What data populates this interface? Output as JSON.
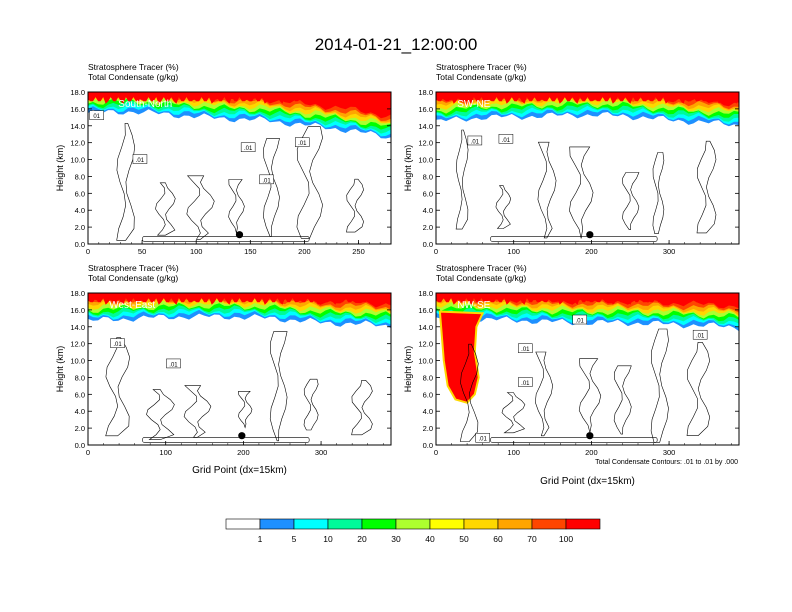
{
  "title": "2014-01-21_12:00:00",
  "colors": [
    "#ffffff",
    "#1e90ff",
    "#00ffff",
    "#00fa9a",
    "#00ff00",
    "#adff2f",
    "#ffff00",
    "#ffd700",
    "#ffa500",
    "#ff4500",
    "#ff0000"
  ],
  "colorbar": {
    "labels": [
      "1",
      "5",
      "10",
      "20",
      "30",
      "40",
      "50",
      "60",
      "70",
      "100"
    ]
  },
  "contour_note": "Total Condensate Contours: .01 to .01 by .000",
  "chart_data": [
    {
      "type": "heatmap",
      "subtitle_1": "Stratosphere Tracer   (%)",
      "subtitle_2": "Total Condensate   (g/kg)",
      "panel_label": "South-North",
      "ylabel": "Height (km)",
      "xlabel": "",
      "xlim": [
        0,
        280
      ],
      "ylim": [
        0,
        18
      ],
      "xticks": [
        0,
        50,
        100,
        150,
        200,
        250
      ],
      "yticks": [
        0,
        2,
        4,
        6,
        8,
        10,
        12,
        14,
        16,
        18
      ],
      "tracer_surface_km": [
        [
          0,
          16.4
        ],
        [
          40,
          16.6
        ],
        [
          80,
          16.2
        ],
        [
          120,
          15.8
        ],
        [
          160,
          15.6
        ],
        [
          200,
          15.0
        ],
        [
          240,
          14.4
        ],
        [
          280,
          13.5
        ]
      ],
      "contour_labels": [
        {
          "x": 8,
          "y": 15.2,
          "text": "01"
        },
        {
          "x": 48,
          "y": 10.0,
          "text": ".01"
        },
        {
          "x": 148,
          "y": 11.4,
          "text": ".01"
        },
        {
          "x": 165,
          "y": 7.6,
          "text": ".01"
        },
        {
          "x": 198,
          "y": 12.0,
          "text": ".01"
        }
      ],
      "marker": {
        "x": 140,
        "y": 1.1
      }
    },
    {
      "type": "heatmap",
      "subtitle_1": "Stratosphere Tracer   (%)",
      "subtitle_2": "Total Condensate   (g/kg)",
      "panel_label": "SW-NE",
      "ylabel": "Height (km)",
      "xlabel": "",
      "xlim": [
        0,
        390
      ],
      "ylim": [
        0,
        18
      ],
      "xticks": [
        0,
        100,
        200,
        300
      ],
      "yticks": [
        0,
        2,
        4,
        6,
        8,
        10,
        12,
        14,
        16,
        18
      ],
      "tracer_surface_km": [
        [
          0,
          15.4
        ],
        [
          60,
          15.9
        ],
        [
          120,
          16.0
        ],
        [
          180,
          16.2
        ],
        [
          240,
          16.1
        ],
        [
          300,
          15.6
        ],
        [
          360,
          15.2
        ],
        [
          390,
          15.0
        ]
      ],
      "contour_labels": [
        {
          "x": 50,
          "y": 12.2,
          "text": ".01"
        },
        {
          "x": 90,
          "y": 12.4,
          "text": ".01"
        }
      ],
      "marker": {
        "x": 198,
        "y": 1.1
      }
    },
    {
      "type": "heatmap",
      "subtitle_1": "Stratosphere Tracer   (%)",
      "subtitle_2": "Total Condensate   (g/kg)",
      "panel_label": "West-East",
      "ylabel": "Height (km)",
      "xlabel": "Grid Point (dx=15km)",
      "xlim": [
        0,
        390
      ],
      "ylim": [
        0,
        18
      ],
      "xticks": [
        0,
        100,
        200,
        300
      ],
      "yticks": [
        0,
        2,
        4,
        6,
        8,
        10,
        12,
        14,
        16,
        18
      ],
      "tracer_surface_km": [
        [
          0,
          15.6
        ],
        [
          60,
          15.9
        ],
        [
          120,
          16.1
        ],
        [
          180,
          16.1
        ],
        [
          240,
          15.9
        ],
        [
          300,
          15.4
        ],
        [
          360,
          15.2
        ],
        [
          390,
          15.0
        ]
      ],
      "contour_labels": [
        {
          "x": 38,
          "y": 12.0,
          "text": ".01"
        },
        {
          "x": 110,
          "y": 9.6,
          "text": ".01"
        }
      ],
      "marker": {
        "x": 198,
        "y": 1.1
      }
    },
    {
      "type": "heatmap",
      "subtitle_1": "Stratosphere Tracer   (%)",
      "subtitle_2": "Total Condensate   (g/kg)",
      "panel_label": "NW-SE",
      "ylabel": "Height (km)",
      "xlabel": "Grid Point (dx=15km)",
      "xlim": [
        0,
        390
      ],
      "ylim": [
        0,
        18
      ],
      "xticks": [
        0,
        100,
        200,
        300
      ],
      "yticks": [
        0,
        2,
        4,
        6,
        8,
        10,
        12,
        14,
        16,
        18
      ],
      "tracer_surface_km": [
        [
          0,
          16.0
        ],
        [
          60,
          15.8
        ],
        [
          120,
          15.6
        ],
        [
          180,
          15.4
        ],
        [
          240,
          15.4
        ],
        [
          300,
          15.2
        ],
        [
          360,
          15.0
        ],
        [
          390,
          14.8
        ]
      ],
      "fold": [
        [
          5,
          15.8
        ],
        [
          10,
          10
        ],
        [
          15,
          7
        ],
        [
          25,
          5.4
        ],
        [
          40,
          5.0
        ],
        [
          50,
          6.0
        ],
        [
          55,
          8
        ],
        [
          50,
          11
        ],
        [
          52,
          14
        ],
        [
          60,
          15.6
        ]
      ],
      "contour_labels": [
        {
          "x": 185,
          "y": 14.8,
          "text": ".01"
        },
        {
          "x": 115,
          "y": 11.4,
          "text": ".01"
        },
        {
          "x": 115,
          "y": 7.4,
          "text": ".01"
        },
        {
          "x": 340,
          "y": 13.0,
          "text": ".01"
        },
        {
          "x": 60,
          "y": 0.8,
          "text": ".01"
        }
      ],
      "marker": {
        "x": 198,
        "y": 1.1
      }
    }
  ]
}
